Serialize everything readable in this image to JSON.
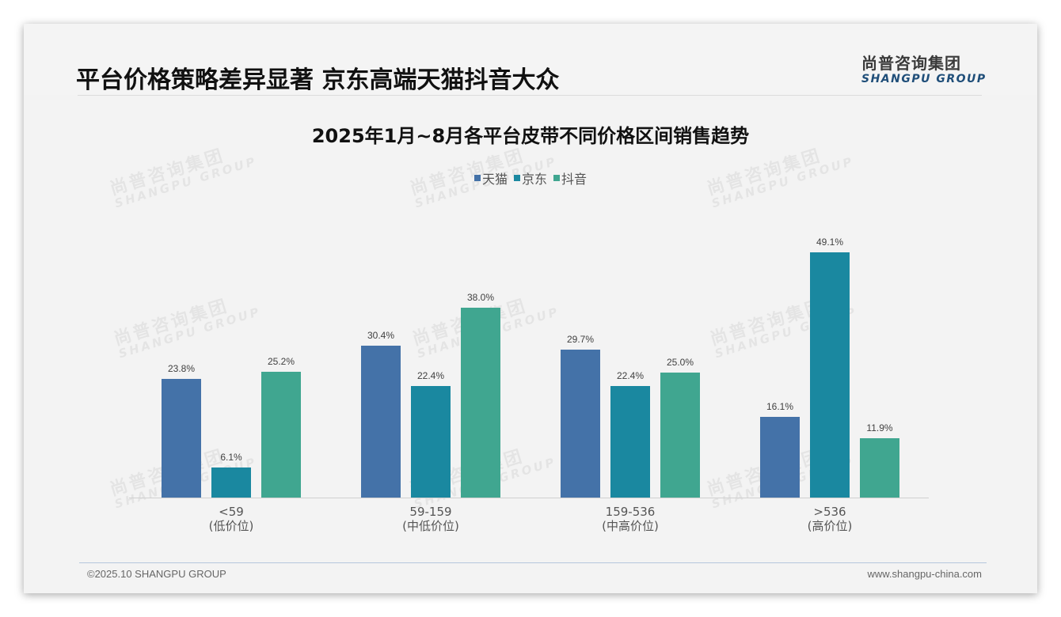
{
  "header": {
    "title": "平台价格策略差异显著 京东高端天猫抖音大众",
    "logo_cn": "尚普咨询集团",
    "logo_en": "SHANGPU GROUP"
  },
  "watermark": {
    "cn": "尚普咨询集团",
    "en": "SHANGPU GROUP"
  },
  "colors": {
    "tmall": "#4472a8",
    "jd": "#1a88a0",
    "douyin": "#40a690",
    "background": "#f3f3f3",
    "logo_blue": "#1f4e79"
  },
  "chart_data": {
    "type": "bar",
    "title": "2025年1月~8月各平台皮带不同价格区间销售趋势",
    "xlabel": "",
    "ylabel": "",
    "ylim": [
      0,
      55
    ],
    "grid": false,
    "legend_position": "top",
    "categories": [
      "<59\n(低价位)",
      "59-159\n(中低价位)",
      "159-536\n(中高价位)",
      ">536\n(高价位)"
    ],
    "category_labels": [
      {
        "range": "<59",
        "tier": "(低价位)"
      },
      {
        "range": "59-159",
        "tier": "(中低价位)"
      },
      {
        "range": "159-536",
        "tier": "(中高价位)"
      },
      {
        "range": ">536",
        "tier": "(高价位)"
      }
    ],
    "series": [
      {
        "name": "天猫",
        "color": "#4472a8",
        "values": [
          23.8,
          30.4,
          29.7,
          16.1
        ],
        "labels": [
          "23.8%",
          "30.4%",
          "29.7%",
          "16.1%"
        ]
      },
      {
        "name": "京东",
        "color": "#1a88a0",
        "values": [
          6.1,
          22.4,
          22.4,
          49.1
        ],
        "labels": [
          "6.1%",
          "22.4%",
          "22.4%",
          "49.1%"
        ]
      },
      {
        "name": "抖音",
        "color": "#40a690",
        "values": [
          25.2,
          38.0,
          25.0,
          11.9
        ],
        "labels": [
          "25.2%",
          "38.0%",
          "25.0%",
          "11.9%"
        ]
      }
    ],
    "unit": "%"
  },
  "footer": {
    "copyright": "©2025.10 SHANGPU GROUP",
    "website": "www.shangpu-china.com"
  }
}
